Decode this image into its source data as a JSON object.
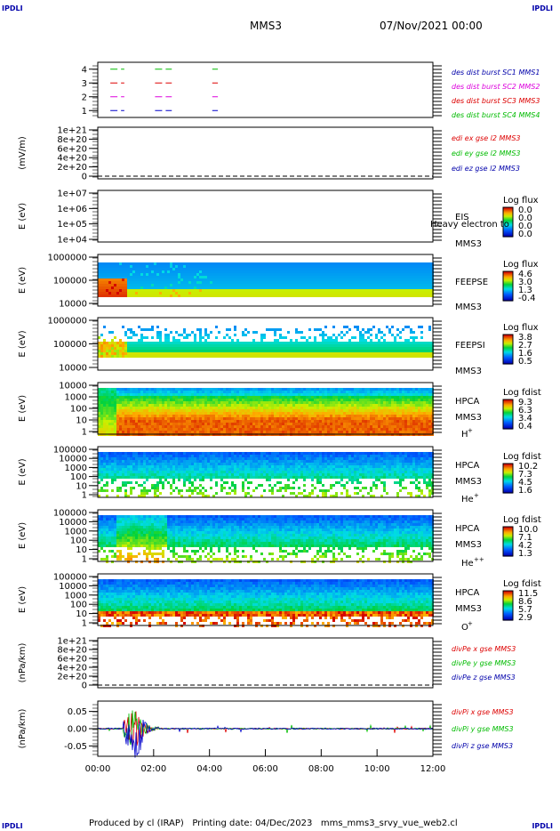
{
  "corner_label": "IPDLI",
  "header": {
    "spacecraft": "MMS3",
    "datetime": "07/Nov/2021 00:00"
  },
  "footer": "Produced by cl (IRAP)   Printing date: 04/Dec/2023   mms_mms3_srvy_vue_web2.cl",
  "colors": {
    "sc1": "#00bb00",
    "sc2": "#dd0000",
    "sc3": "#dd00dd",
    "sc4": "#0000cc",
    "text_blue": "#0000aa"
  },
  "chart_data": [
    {
      "type": "line",
      "ylim": [
        0.5,
        4.5
      ],
      "yticks": [
        "1",
        "2",
        "3",
        "4"
      ],
      "legend": [
        {
          "label": "des dist burst SC1 MMS1",
          "color": "#0000aa"
        },
        {
          "label": "des dist burst SC2 MMS2",
          "color": "#dd00dd"
        },
        {
          "label": "des dist burst SC3 MMS3",
          "color": "#dd0000"
        },
        {
          "label": "des dist burst SC4 MMS4",
          "color": "#00bb00"
        }
      ],
      "series": [
        {
          "y": 4,
          "color": "#00bb00",
          "intervals": [
            [
              0.45,
              0.95
            ],
            [
              2.05,
              2.65
            ],
            [
              4.1,
              4.3
            ]
          ]
        },
        {
          "y": 3,
          "color": "#dd0000",
          "intervals": [
            [
              0.45,
              0.95
            ],
            [
              2.05,
              2.65
            ],
            [
              4.1,
              4.3
            ]
          ]
        },
        {
          "y": 2,
          "color": "#dd00dd",
          "intervals": [
            [
              0.45,
              0.95
            ],
            [
              2.05,
              2.65
            ],
            [
              4.1,
              4.3
            ]
          ]
        },
        {
          "y": 1,
          "color": "#0000cc",
          "intervals": [
            [
              0.45,
              0.95
            ],
            [
              2.05,
              2.65
            ],
            [
              4.1,
              4.3
            ]
          ]
        }
      ]
    },
    {
      "type": "line",
      "ylabel": "(mV/m)",
      "yticks": [
        "0",
        "2e+20",
        "4e+20",
        "6e+20",
        "8e+20",
        "1e+21"
      ],
      "zero_line": true,
      "legend": [
        {
          "label": "edi ex gse l2 MMS3",
          "color": "#dd0000"
        },
        {
          "label": "edi ey gse l2 MMS3",
          "color": "#00bb00"
        },
        {
          "label": "edi ez gse l2 MMS3",
          "color": "#0000aa"
        }
      ]
    },
    {
      "type": "heatmap",
      "ylabel": "E (eV)",
      "yticks": [
        "1e+04",
        "1e+05",
        "1e+06",
        "1e+07"
      ],
      "side_labels": [
        "EIS",
        "MMS3"
      ],
      "overlay_text": "Heavy electron to",
      "colorbar": {
        "title": "Log flux",
        "ticks": [
          "0.0",
          "0.0",
          "0.0",
          "0.0"
        ]
      }
    },
    {
      "type": "heatmap",
      "ylabel": "E (eV)",
      "yticks": [
        "10000",
        "100000",
        "1000000"
      ],
      "side_labels": [
        "FEEPSE",
        "MMS3"
      ],
      "colorbar": {
        "title": "Log flux",
        "ticks": [
          "4.6",
          "3.0",
          "1.3",
          "-0.4"
        ]
      }
    },
    {
      "type": "heatmap",
      "ylabel": "E (eV)",
      "yticks": [
        "10000",
        "100000",
        "1000000"
      ],
      "side_labels": [
        "FEEPSI",
        "MMS3"
      ],
      "colorbar": {
        "title": "Log flux",
        "ticks": [
          "3.8",
          "2.7",
          "1.6",
          "0.5"
        ]
      }
    },
    {
      "type": "heatmap",
      "ylabel": "E (eV)",
      "yticks": [
        "1",
        "10",
        "100",
        "1000",
        "10000"
      ],
      "side_labels": [
        "HPCA",
        "MMS3"
      ],
      "species": "H",
      "charge": "+",
      "colorbar": {
        "title": "Log fdist",
        "ticks": [
          "9.3",
          "6.3",
          "3.4",
          "0.4"
        ]
      }
    },
    {
      "type": "heatmap",
      "ylabel": "E (eV)",
      "yticks": [
        "1",
        "10",
        "100",
        "1000",
        "10000",
        "100000"
      ],
      "side_labels": [
        "HPCA",
        "MMS3"
      ],
      "species": "He",
      "charge": "+",
      "colorbar": {
        "title": "Log fdist",
        "ticks": [
          "10.2",
          "7.3",
          "4.5",
          "1.6"
        ]
      }
    },
    {
      "type": "heatmap",
      "ylabel": "E (eV)",
      "yticks": [
        "1",
        "10",
        "100",
        "1000",
        "10000",
        "100000"
      ],
      "side_labels": [
        "HPCA",
        "MMS3"
      ],
      "species": "He",
      "charge": "++",
      "colorbar": {
        "title": "Log fdist",
        "ticks": [
          "10.0",
          "7.1",
          "4.2",
          "1.3"
        ]
      }
    },
    {
      "type": "heatmap",
      "ylabel": "E (eV)",
      "yticks": [
        "1",
        "10",
        "100",
        "1000",
        "10000",
        "100000"
      ],
      "side_labels": [
        "HPCA",
        "MMS3"
      ],
      "species": "O",
      "charge": "+",
      "colorbar": {
        "title": "Log fdist",
        "ticks": [
          "11.5",
          "8.6",
          "5.7",
          "2.9"
        ]
      }
    },
    {
      "type": "line",
      "ylabel": "(nPa/km)",
      "yticks": [
        "0",
        "2e+20",
        "4e+20",
        "6e+20",
        "8e+20",
        "1e+21"
      ],
      "zero_line": true,
      "legend": [
        {
          "label": "divPe x gse MMS3",
          "color": "#dd0000"
        },
        {
          "label": "divPe y gse MMS3",
          "color": "#00bb00"
        },
        {
          "label": "divPe z gse MMS3",
          "color": "#0000aa"
        }
      ]
    },
    {
      "type": "line",
      "ylabel": "(nPa/km)",
      "ylim": [
        -0.08,
        0.08
      ],
      "yticks": [
        "-0.05",
        "0.00",
        "0.05"
      ],
      "xticks": [
        "00:00",
        "02:00",
        "04:00",
        "06:00",
        "08:00",
        "10:00",
        "12:00"
      ],
      "xlim": [
        0,
        12
      ],
      "legend": [
        {
          "label": "divPi x gse MMS3",
          "color": "#dd0000"
        },
        {
          "label": "divPi y gse MMS3",
          "color": "#00bb00"
        },
        {
          "label": "divPi z gse MMS3",
          "color": "#0000aa"
        }
      ]
    }
  ]
}
